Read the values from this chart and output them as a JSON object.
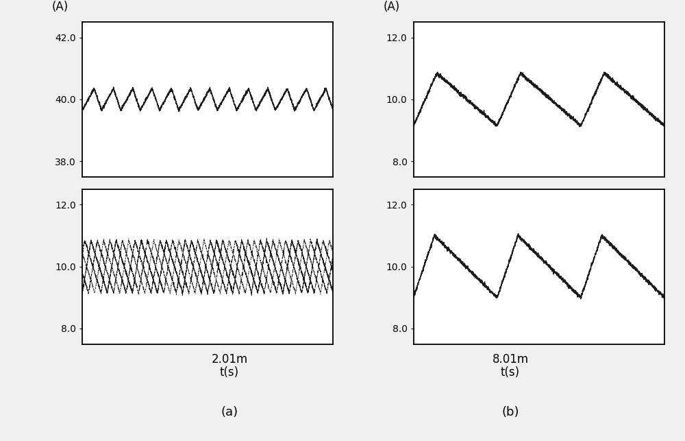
{
  "fig_width": 10.0,
  "fig_height": 6.43,
  "background_color": "#f0f0f0",
  "subplot_a_top": {
    "ylabel": "(A)",
    "ylim": [
      37.5,
      42.5
    ],
    "yticks": [
      38.0,
      40.0,
      42.0
    ],
    "ytick_labels": [
      "38.0",
      "40.0",
      "42.0"
    ],
    "xlabel_center": "2.01m",
    "xlabel_bottom": "t(s)"
  },
  "subplot_a_bottom": {
    "ylim": [
      7.5,
      12.5
    ],
    "yticks": [
      8.0,
      10.0,
      12.0
    ],
    "ytick_labels": [
      "8.0",
      "10.0",
      "12.0"
    ]
  },
  "subplot_b_top": {
    "ylabel": "(A)",
    "ylim": [
      7.5,
      12.5
    ],
    "yticks": [
      8.0,
      10.0,
      12.0
    ],
    "ytick_labels": [
      "8.0",
      "10.0",
      "12.0"
    ],
    "xlabel_center": "8.01m",
    "xlabel_bottom": "t(s)"
  },
  "subplot_b_bottom": {
    "ylim": [
      7.5,
      12.5
    ],
    "yticks": [
      8.0,
      10.0,
      12.0
    ],
    "ytick_labels": [
      "8.0",
      "10.0",
      "12.0"
    ]
  },
  "line_color": "#1a1a1a",
  "label_a": "(a)",
  "label_b": "(b)"
}
